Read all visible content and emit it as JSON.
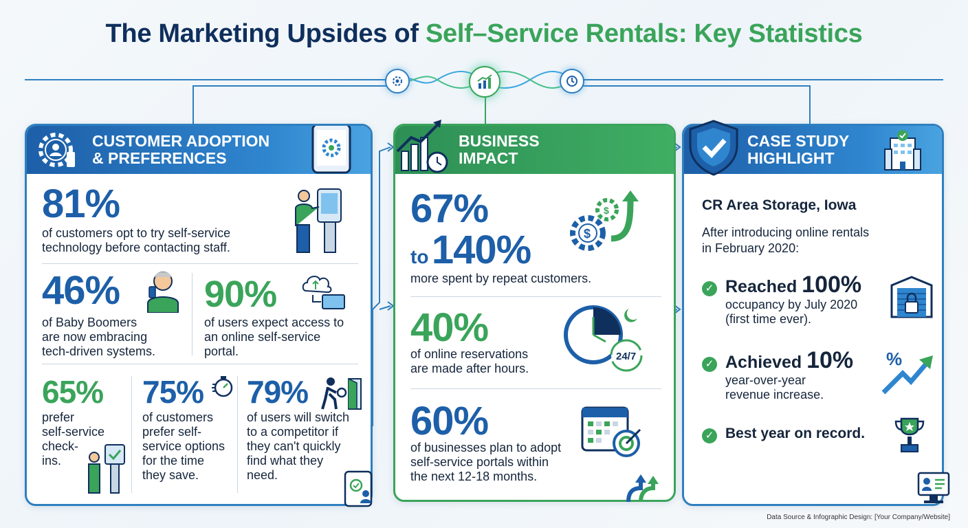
{
  "title": {
    "part1": "The Marketing Upsides of ",
    "part2": "Self–Service Rentals: Key Statistics"
  },
  "hub_icons": [
    "gear-people-icon",
    "chart-growth-icon",
    "clock-dollar-icon"
  ],
  "left_panel": {
    "heading_line1": "CUSTOMER ADOPTION",
    "heading_line2": "& PREFERENCES",
    "stat_81": {
      "value": "81%",
      "desc_line1": "of customers opt to try self-service",
      "desc_line2": "technology before contacting staff."
    },
    "stat_46": {
      "value": "46%",
      "desc_line1": "of Baby Boomers",
      "desc_line2": "are now embracing",
      "desc_line3": "tech-driven systems."
    },
    "stat_90": {
      "value": "90%",
      "desc_line1": "of users expect access to",
      "desc_line2": "an online self-service",
      "desc_line3": "portal."
    },
    "stat_65": {
      "value": "65%",
      "desc_line1": "prefer",
      "desc_line2": "self-service",
      "desc_line3": "check-",
      "desc_line4": "ins."
    },
    "stat_75": {
      "value": "75%",
      "desc_line1": "of customers",
      "desc_line2": "prefer self-",
      "desc_line3": "service options",
      "desc_line4": "for the time",
      "desc_line5": "they save."
    },
    "stat_79": {
      "value": "79%",
      "desc_line1": "of users will switch",
      "desc_line2": "to a competitor if",
      "desc_line3": "they can't quickly",
      "desc_line4": "find what they",
      "desc_line5": "need."
    }
  },
  "mid_panel": {
    "heading_line1": "BUSINESS",
    "heading_line2": "IMPACT",
    "stat_67": {
      "value_a": "67%",
      "connector": "to",
      "value_b": "140%",
      "desc": "more spent by repeat customers."
    },
    "stat_40": {
      "value": "40%",
      "desc_line1": "of online reservations",
      "desc_line2": "are made after hours.",
      "badge": "24/7"
    },
    "stat_60": {
      "value": "60%",
      "desc_line1": "of businesses plan to adopt",
      "desc_line2": "self-service portals within",
      "desc_line3": "the next 12-18 months."
    }
  },
  "right_panel": {
    "heading_line1": "CASE STUDY",
    "heading_line2": "HIGHLIGHT",
    "company": "CR Area Storage, Iowa",
    "intro_line1": "After introducing online rentals",
    "intro_line2": "in February 2020:",
    "items": [
      {
        "lead": "Reached ",
        "value": "100%",
        "line1": "occupancy by July 2020",
        "line2": "(first time ever)."
      },
      {
        "lead": "Achieved ",
        "value": "10%",
        "line1": "year-over-year",
        "line2": "revenue increase."
      },
      {
        "lead": "Best year on record.",
        "value": "",
        "line1": "",
        "line2": ""
      }
    ],
    "percent_glyph": "%"
  },
  "footer": "Data Source & Infographic Design: [Your Company/Website]",
  "colors": {
    "blue": "#1d5fa8",
    "green": "#3aa45a",
    "navy": "#0f2f5c",
    "line": "#2f7fbf"
  }
}
